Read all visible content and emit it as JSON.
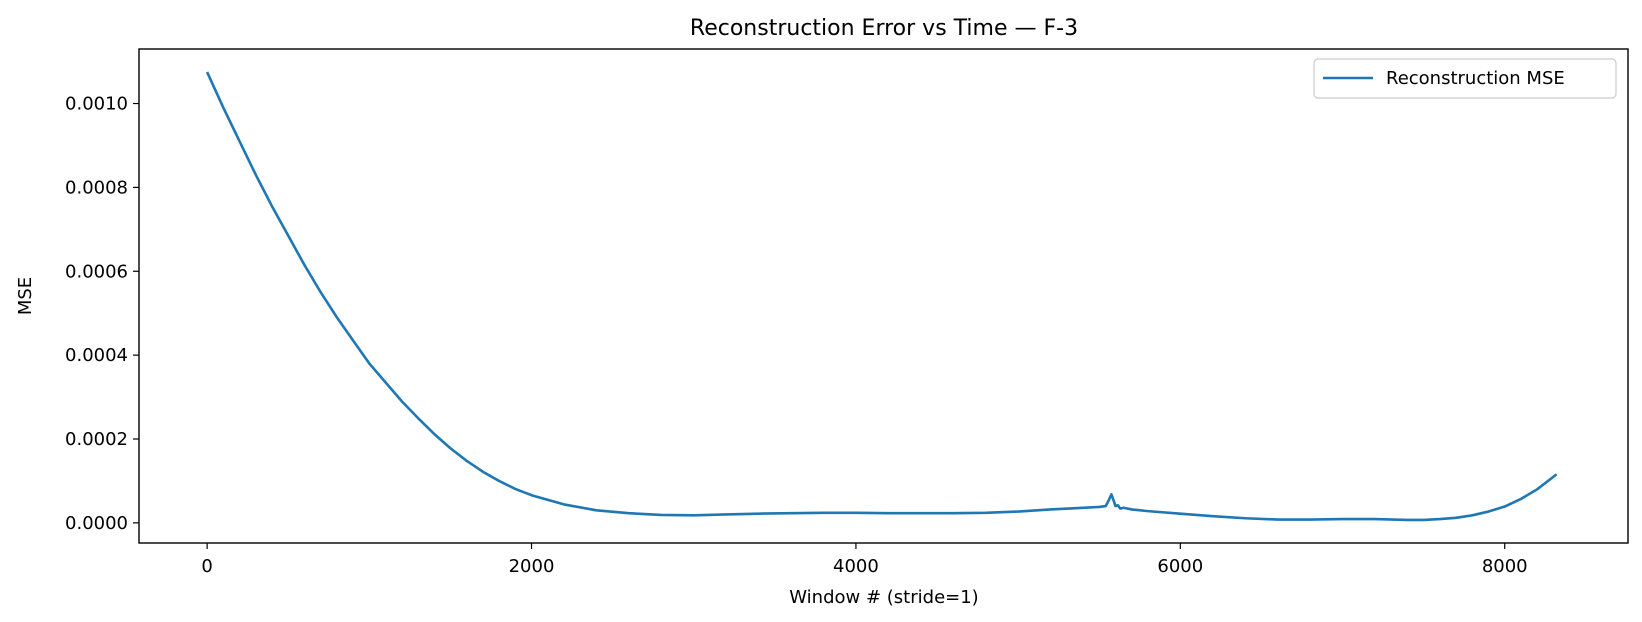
{
  "chart_data": {
    "type": "line",
    "title": "Reconstruction Error vs Time — F-3",
    "xlabel": "Window # (stride=1)",
    "ylabel": "MSE",
    "xlim": [
      -420,
      8760
    ],
    "ylim": [
      -4.8e-05,
      0.00113
    ],
    "xticks": [
      0,
      2000,
      4000,
      6000,
      8000
    ],
    "xtick_labels": [
      "0",
      "2000",
      "4000",
      "6000",
      "8000"
    ],
    "yticks": [
      0.0,
      0.0002,
      0.0004,
      0.0006,
      0.0008,
      0.001
    ],
    "ytick_labels": [
      "0.0000",
      "0.0002",
      "0.0004",
      "0.0006",
      "0.0008",
      "0.0010"
    ],
    "grid": false,
    "legend_position": "top-right",
    "series": [
      {
        "name": "Reconstruction MSE",
        "color": "#1f77b4",
        "x": [
          0,
          100,
          200,
          300,
          400,
          500,
          600,
          700,
          800,
          900,
          1000,
          1100,
          1200,
          1300,
          1400,
          1500,
          1600,
          1700,
          1800,
          1900,
          2000,
          2200,
          2400,
          2600,
          2800,
          3000,
          3200,
          3400,
          3600,
          3800,
          4000,
          4200,
          4400,
          4600,
          4800,
          5000,
          5200,
          5400,
          5500,
          5540,
          5560,
          5575,
          5590,
          5600,
          5615,
          5630,
          5650,
          5700,
          5800,
          6000,
          6200,
          6400,
          6600,
          6800,
          7000,
          7200,
          7400,
          7500,
          7600,
          7700,
          7800,
          7900,
          8000,
          8100,
          8200,
          8320
        ],
        "y": [
          0.001075,
          0.00099,
          0.00091,
          0.00083,
          0.000755,
          0.000685,
          0.000615,
          0.00055,
          0.00049,
          0.000435,
          0.00038,
          0.000335,
          0.00029,
          0.00025,
          0.000212,
          0.000178,
          0.000148,
          0.000122,
          0.0001,
          8.1e-05,
          6.6e-05,
          4.4e-05,
          3e-05,
          2.3e-05,
          1.9e-05,
          1.8e-05,
          2e-05,
          2.2e-05,
          2.3e-05,
          2.4e-05,
          2.4e-05,
          2.3e-05,
          2.3e-05,
          2.3e-05,
          2.4e-05,
          2.7e-05,
          3.2e-05,
          3.6e-05,
          3.8e-05,
          4e-05,
          5.5e-05,
          6.8e-05,
          5.2e-05,
          4e-05,
          4.2e-05,
          3.4e-05,
          3.6e-05,
          3.2e-05,
          2.8e-05,
          2.2e-05,
          1.6e-05,
          1.1e-05,
          8e-06,
          8e-06,
          9e-06,
          9e-06,
          7e-06,
          7e-06,
          9e-06,
          1.2e-05,
          1.8e-05,
          2.7e-05,
          3.9e-05,
          5.7e-05,
          8e-05,
          0.000116
        ]
      }
    ]
  }
}
